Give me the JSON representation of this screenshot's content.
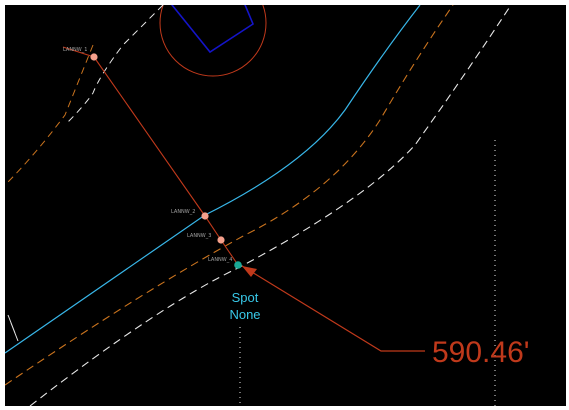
{
  "colors": {
    "canvas_bg": "#000000",
    "alignment_cyan": "#38b6e8",
    "edge_orange": "#c9731e",
    "edge_white": "#e8e8e8",
    "leader_red": "#c0391b",
    "point_pink": "#f5a08c",
    "selected_teal": "#1aa896",
    "symbol_blue": "#1414c8",
    "label_grey": "#a0a0a0"
  },
  "points": [
    {
      "label": "LANNW_1"
    },
    {
      "label": "LANNW_2"
    },
    {
      "label": "LANNW_3"
    },
    {
      "label": "LANNW_4"
    }
  ],
  "spot": {
    "title": "Spot",
    "value": "None"
  },
  "measurement": {
    "value": "590.46'"
  }
}
